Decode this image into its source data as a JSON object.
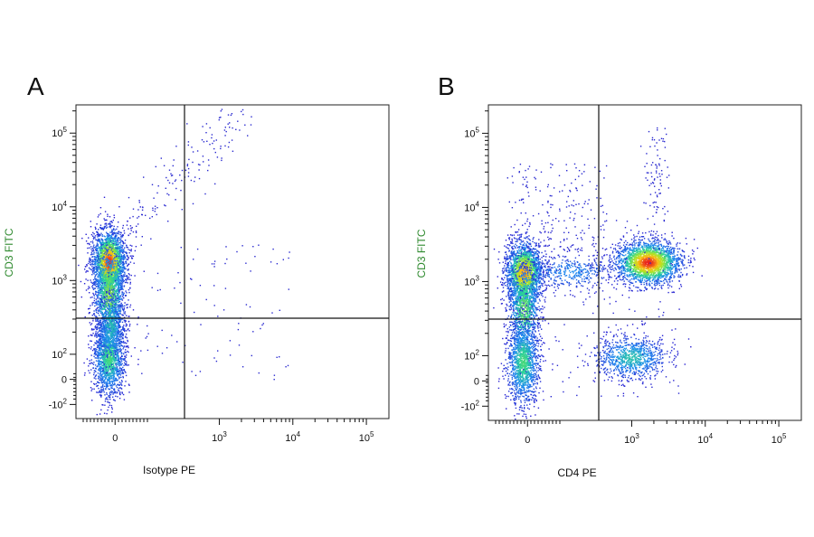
{
  "chart_data": [
    {
      "type": "scatter",
      "panel": "A",
      "xlabel": "Isotype PE",
      "ylabel": "CD3 FITC",
      "x_scale": "biexponential",
      "y_scale": "biexponential",
      "x_ticks": [
        {
          "value": 0,
          "label": "0",
          "base": "",
          "exp": ""
        },
        {
          "value": 1000,
          "label": "10^3",
          "base": "10",
          "exp": "3"
        },
        {
          "value": 10000,
          "label": "10^4",
          "base": "10",
          "exp": "4"
        },
        {
          "value": 100000,
          "label": "10^5",
          "base": "10",
          "exp": "5"
        }
      ],
      "y_ticks": [
        {
          "value": -100,
          "label": "-10^2",
          "base": "-10",
          "exp": "2"
        },
        {
          "value": 0,
          "label": "0",
          "base": "",
          "exp": ""
        },
        {
          "value": 100,
          "label": "10^2",
          "base": "10",
          "exp": "2"
        },
        {
          "value": 1000,
          "label": "10^3",
          "base": "10",
          "exp": "3"
        },
        {
          "value": 10000,
          "label": "10^4",
          "base": "10",
          "exp": "4"
        },
        {
          "value": 100000,
          "label": "10^5",
          "base": "10",
          "exp": "5"
        }
      ],
      "gate": {
        "x": 250,
        "y": 300
      },
      "populations": [
        {
          "name": "CD3+ isotype-",
          "x_center": -20,
          "y_center": 1600,
          "relative_density": "high"
        },
        {
          "name": "CD3- isotype-",
          "x_center": -20,
          "y_center": 60,
          "relative_density": "medium"
        }
      ]
    },
    {
      "type": "scatter",
      "panel": "B",
      "xlabel": "CD4 PE",
      "ylabel": "CD3 FITC",
      "x_scale": "biexponential",
      "y_scale": "biexponential",
      "x_ticks": [
        {
          "value": 0,
          "label": "0",
          "base": "",
          "exp": ""
        },
        {
          "value": 1000,
          "label": "10^3",
          "base": "10",
          "exp": "3"
        },
        {
          "value": 10000,
          "label": "10^4",
          "base": "10",
          "exp": "4"
        },
        {
          "value": 100000,
          "label": "10^5",
          "base": "10",
          "exp": "5"
        }
      ],
      "y_ticks": [
        {
          "value": -100,
          "label": "-10^2",
          "base": "-10",
          "exp": "2"
        },
        {
          "value": 0,
          "label": "0",
          "base": "",
          "exp": ""
        },
        {
          "value": 100,
          "label": "10^2",
          "base": "10",
          "exp": "2"
        },
        {
          "value": 1000,
          "label": "10^3",
          "base": "10",
          "exp": "3"
        },
        {
          "value": 10000,
          "label": "10^4",
          "base": "10",
          "exp": "4"
        },
        {
          "value": 100000,
          "label": "10^5",
          "base": "10",
          "exp": "5"
        }
      ],
      "gate": {
        "x": 250,
        "y": 300
      },
      "populations": [
        {
          "name": "CD3+ CD4-",
          "x_center": -10,
          "y_center": 1400,
          "relative_density": "high"
        },
        {
          "name": "CD3+ CD4+",
          "x_center": 2000,
          "y_center": 1900,
          "relative_density": "high"
        },
        {
          "name": "CD3- CD4-",
          "x_center": -10,
          "y_center": 50,
          "relative_density": "medium"
        },
        {
          "name": "CD3- CD4+",
          "x_center": 1000,
          "y_center": 90,
          "relative_density": "low"
        }
      ]
    }
  ],
  "colors": {
    "density_low": "#1f2bd6",
    "density_mid": "#2fd36a",
    "density_high": "#e81e1e",
    "ylabel": "#2f8a2f"
  }
}
